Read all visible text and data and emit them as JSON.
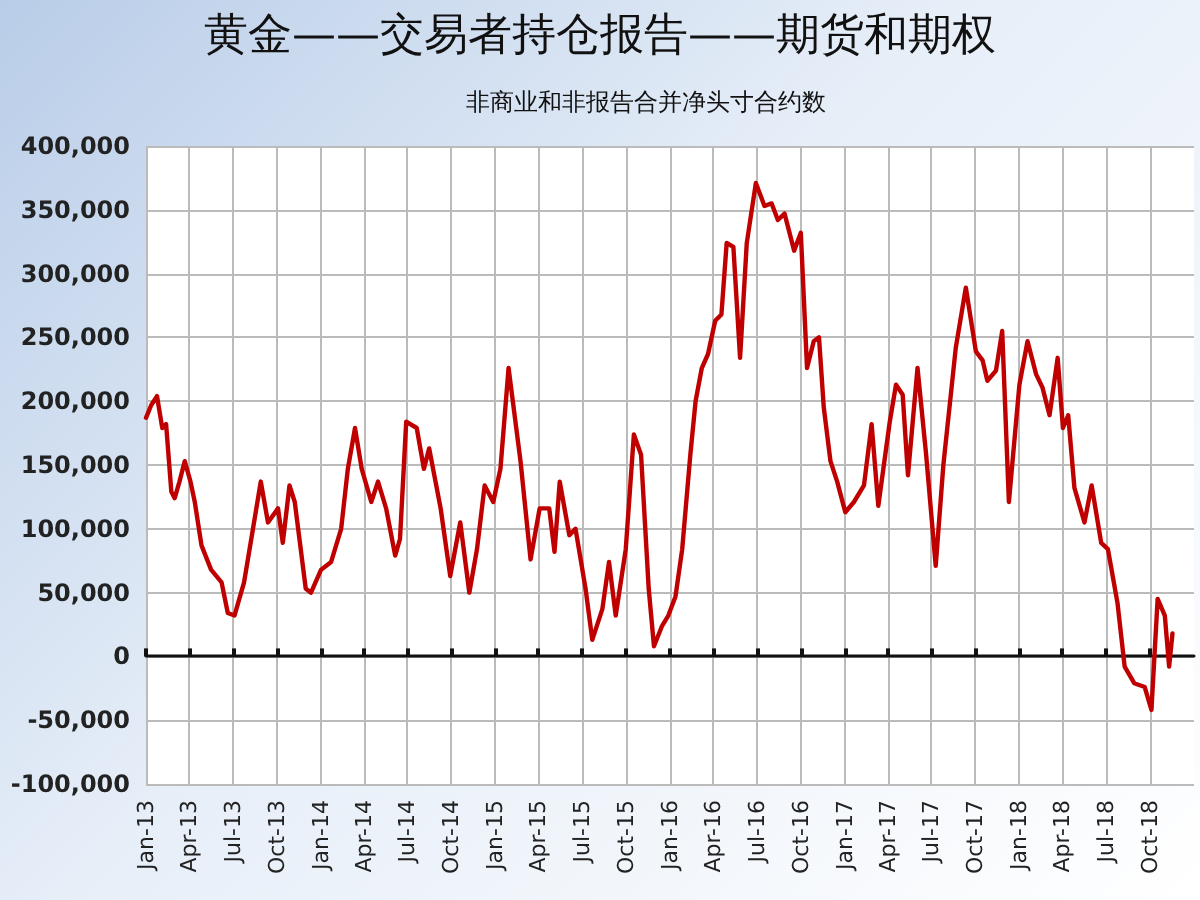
{
  "chart_data": {
    "type": "line",
    "title": "黄金——交易者持仓报告——期货和期权",
    "subtitle": "非商业和非报告合并净头寸合约数",
    "x": [
      "2013-01-01",
      "2013-01-12",
      "2013-01-24",
      "2013-02-04",
      "2013-02-12",
      "2013-02-23",
      "2013-03-02",
      "2013-03-12",
      "2013-03-23",
      "2013-04-04",
      "2013-04-13",
      "2013-04-27",
      "2013-05-17",
      "2013-06-08",
      "2013-06-21",
      "2013-07-05",
      "2013-07-25",
      "2013-08-29",
      "2013-09-13",
      "2013-10-04",
      "2013-10-14",
      "2013-10-28",
      "2013-11-08",
      "2013-12-01",
      "2013-12-12",
      "2014-01-02",
      "2014-01-23",
      "2014-02-13",
      "2014-02-27",
      "2014-03-14",
      "2014-03-28",
      "2014-04-17",
      "2014-05-01",
      "2014-05-18",
      "2014-06-06",
      "2014-06-16",
      "2014-06-29",
      "2014-07-21",
      "2014-08-05",
      "2014-08-16",
      "2014-09-09",
      "2014-09-29",
      "2014-10-20",
      "2014-11-08",
      "2014-11-24",
      "2014-12-10",
      "2014-12-28",
      "2015-01-12",
      "2015-01-29",
      "2015-02-23",
      "2015-03-16",
      "2015-04-04",
      "2015-04-24",
      "2015-05-05",
      "2015-05-16",
      "2015-06-05",
      "2015-06-18",
      "2015-07-09",
      "2015-07-23",
      "2015-08-13",
      "2015-08-27",
      "2015-09-10",
      "2015-10-01",
      "2015-10-18",
      "2015-11-02",
      "2015-11-18",
      "2015-11-29",
      "2015-12-16",
      "2015-12-29",
      "2016-01-13",
      "2016-01-27",
      "2016-02-13",
      "2016-02-24",
      "2016-03-08",
      "2016-03-21",
      "2016-04-05",
      "2016-04-18",
      "2016-04-29",
      "2016-05-13",
      "2016-05-27",
      "2016-06-10",
      "2016-06-29",
      "2016-07-17",
      "2016-08-01",
      "2016-08-14",
      "2016-08-28",
      "2016-09-17",
      "2016-10-01",
      "2016-10-14",
      "2016-10-28",
      "2016-11-08",
      "2016-11-18",
      "2016-12-02",
      "2016-12-16",
      "2017-01-02",
      "2017-01-20",
      "2017-02-10",
      "2017-02-26",
      "2017-03-12",
      "2017-04-05",
      "2017-04-18",
      "2017-05-02",
      "2017-05-13",
      "2017-06-02",
      "2017-06-20",
      "2017-07-10",
      "2017-07-26",
      "2017-08-21",
      "2017-09-11",
      "2017-10-02",
      "2017-10-16",
      "2017-10-26",
      "2017-11-13",
      "2017-11-26",
      "2017-12-10",
      "2018-01-01",
      "2018-01-18",
      "2018-02-05",
      "2018-02-18",
      "2018-03-05",
      "2018-03-22",
      "2018-04-02",
      "2018-04-13",
      "2018-04-26",
      "2018-05-17",
      "2018-06-01",
      "2018-06-21",
      "2018-07-05",
      "2018-07-25",
      "2018-08-09",
      "2018-08-29",
      "2018-09-20",
      "2018-10-04",
      "2018-10-17",
      "2018-11-01",
      "2018-11-10",
      "2018-11-17"
    ],
    "series": [
      {
        "color": "#c00000",
        "values": [
          187000,
          197000,
          204000,
          179000,
          182000,
          129000,
          124000,
          137000,
          153000,
          137000,
          121000,
          87000,
          68000,
          58000,
          34000,
          32000,
          58000,
          137000,
          105000,
          116000,
          89000,
          134000,
          121000,
          53000,
          50000,
          68000,
          74000,
          100000,
          147000,
          179000,
          147000,
          121000,
          137000,
          116000,
          79000,
          92000,
          184000,
          179000,
          147000,
          163000,
          116000,
          63000,
          105000,
          50000,
          84000,
          134000,
          121000,
          147000,
          226000,
          153000,
          76000,
          116000,
          116000,
          82000,
          137000,
          95000,
          100000,
          53000,
          13000,
          37000,
          74000,
          32000,
          84000,
          174000,
          158000,
          53000,
          8000,
          24000,
          32000,
          47000,
          84000,
          158000,
          200000,
          226000,
          237000,
          263000,
          268000,
          324000,
          321000,
          234000,
          324000,
          371000,
          353000,
          355000,
          342000,
          347000,
          318000,
          332000,
          226000,
          247000,
          250000,
          195000,
          153000,
          137000,
          113000,
          121000,
          134000,
          182000,
          118000,
          184000,
          213000,
          205000,
          142000,
          226000,
          158000,
          71000,
          150000,
          242000,
          289000,
          239000,
          232000,
          216000,
          224000,
          255000,
          121000,
          213000,
          247000,
          221000,
          211000,
          189000,
          234000,
          179000,
          189000,
          132000,
          105000,
          134000,
          89000,
          84000,
          42000,
          -8000,
          -21000,
          -24000,
          -42000,
          45000,
          32000,
          -8000,
          18000
        ]
      }
    ],
    "xlim": [
      "2013-01-01",
      "2019-01-01"
    ],
    "xticks": [
      {
        "value": "2013-01-01",
        "label": "Jan-13"
      },
      {
        "value": "2013-04-01",
        "label": "Apr-13"
      },
      {
        "value": "2013-07-01",
        "label": "Jul-13"
      },
      {
        "value": "2013-10-01",
        "label": "Oct-13"
      },
      {
        "value": "2014-01-01",
        "label": "Jan-14"
      },
      {
        "value": "2014-04-01",
        "label": "Apr-14"
      },
      {
        "value": "2014-07-01",
        "label": "Jul-14"
      },
      {
        "value": "2014-10-01",
        "label": "Oct-14"
      },
      {
        "value": "2015-01-01",
        "label": "Jan-15"
      },
      {
        "value": "2015-04-01",
        "label": "Apr-15"
      },
      {
        "value": "2015-07-01",
        "label": "Jul-15"
      },
      {
        "value": "2015-10-01",
        "label": "Oct-15"
      },
      {
        "value": "2016-01-01",
        "label": "Jan-16"
      },
      {
        "value": "2016-04-01",
        "label": "Apr-16"
      },
      {
        "value": "2016-07-01",
        "label": "Jul-16"
      },
      {
        "value": "2016-10-01",
        "label": "Oct-16"
      },
      {
        "value": "2017-01-01",
        "label": "Jan-17"
      },
      {
        "value": "2017-04-01",
        "label": "Apr-17"
      },
      {
        "value": "2017-07-01",
        "label": "Jul-17"
      },
      {
        "value": "2017-10-01",
        "label": "Oct-17"
      },
      {
        "value": "2018-01-01",
        "label": "Jan-18"
      },
      {
        "value": "2018-04-01",
        "label": "Apr-18"
      },
      {
        "value": "2018-07-01",
        "label": "Jul-18"
      },
      {
        "value": "2018-10-01",
        "label": "Oct-18"
      }
    ],
    "ylim": [
      -100000,
      400000
    ],
    "yticks": [
      {
        "value": -100000,
        "label": "-100,000"
      },
      {
        "value": -50000,
        "label": "-50,000"
      },
      {
        "value": 0,
        "label": "0"
      },
      {
        "value": 50000,
        "label": "50,000"
      },
      {
        "value": 100000,
        "label": "100,000"
      },
      {
        "value": 150000,
        "label": "150,000"
      },
      {
        "value": 200000,
        "label": "200,000"
      },
      {
        "value": 250000,
        "label": "250,000"
      },
      {
        "value": 300000,
        "label": "300,000"
      },
      {
        "value": 350000,
        "label": "350,000"
      },
      {
        "value": 400000,
        "label": "400,000"
      }
    ],
    "grid": true,
    "marker": "none",
    "line_style": "solid"
  }
}
